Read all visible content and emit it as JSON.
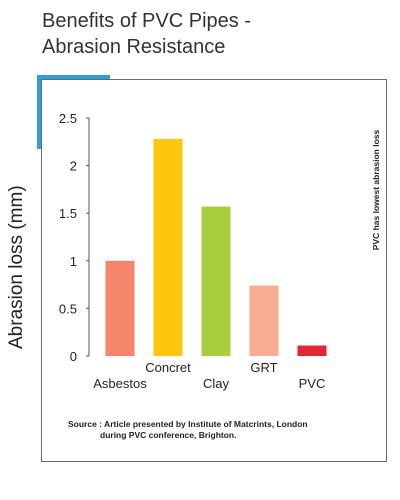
{
  "title": {
    "line1": "Benefits of PVC Pipes -",
    "line2": "Abrasion Resistance"
  },
  "colors": {
    "accent": "#2a9fd8",
    "axis": "#555555"
  },
  "annotation": "PVC has lowest abrasion loss",
  "source": {
    "line1": "Source : Article presented by Institute of Matcrints, London",
    "line2": "during PVC conference, Brighton."
  },
  "chart_data": {
    "type": "bar",
    "title": "Benefits of PVC Pipes - Abrasion Resistance",
    "ylabel": "Abrasion loss (mm)",
    "xlabel": "",
    "ylim": [
      0,
      2.5
    ],
    "yticks": [
      "0",
      "0.5",
      "1",
      "1.5",
      "2",
      "2.5"
    ],
    "ytick_values": [
      0,
      0.5,
      1,
      1.5,
      2,
      2.5
    ],
    "grid": false,
    "categories": [
      "Asbestos",
      "Concret",
      "Clay",
      "GRT",
      "PVC"
    ],
    "label_position": [
      "below",
      "above",
      "below",
      "above",
      "below"
    ],
    "values": [
      1.0,
      2.28,
      1.57,
      0.74,
      0.11
    ],
    "colors": [
      "#f4846a",
      "#fdc70f",
      "#a8ce3b",
      "#f8ad93",
      "#e42632"
    ]
  }
}
